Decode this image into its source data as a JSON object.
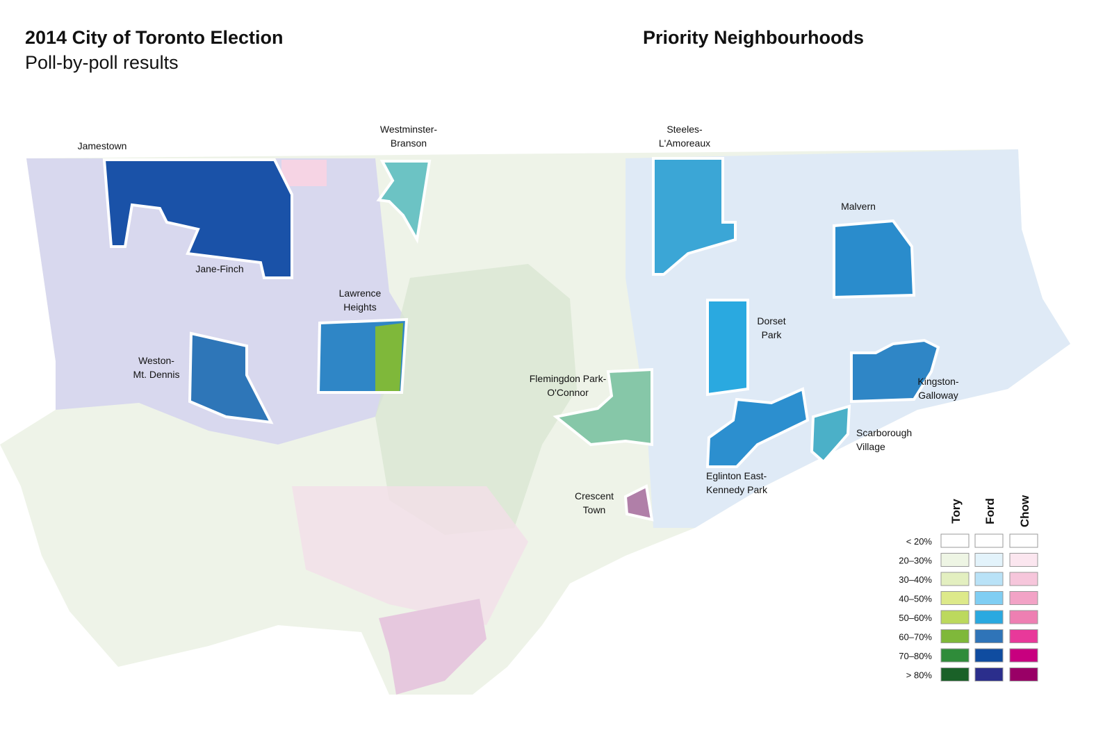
{
  "header": {
    "title": "2014 City of Toronto Election",
    "subtitle": "Poll-by-poll results",
    "section_title": "Priority Neighbourhoods"
  },
  "neighbourhoods": [
    {
      "label": [
        "Jamestown"
      ]
    },
    {
      "label": [
        "Westminster-",
        "Branson"
      ]
    },
    {
      "label": [
        "Steeles-",
        "L'Amoreaux"
      ]
    },
    {
      "label": [
        "Malvern"
      ]
    },
    {
      "label": [
        "Jane-Finch"
      ]
    },
    {
      "label": [
        "Lawrence",
        "Heights"
      ]
    },
    {
      "label": [
        "Dorset",
        "Park"
      ]
    },
    {
      "label": [
        "Weston-",
        "Mt. Dennis"
      ]
    },
    {
      "label": [
        "Flemingdon Park-",
        "O'Connor"
      ]
    },
    {
      "label": [
        "Kingston-",
        "Galloway"
      ]
    },
    {
      "label": [
        "Scarborough",
        "Village"
      ]
    },
    {
      "label": [
        "Eglinton East-",
        "Kennedy Park"
      ]
    },
    {
      "label": [
        "Crescent",
        "Town"
      ]
    }
  ],
  "legend": {
    "rows": [
      "< 20%",
      "20–30%",
      "30–40%",
      "40–50%",
      "50–60%",
      "60–70%",
      "70–80%",
      "> 80%"
    ],
    "columns": [
      {
        "name": "Tory",
        "colors": [
          "#ffffff",
          "#eef5e4",
          "#e3efc0",
          "#dde98a",
          "#bcd95d",
          "#7fb83a",
          "#2f8c3a",
          "#1a6128"
        ]
      },
      {
        "name": "Ford",
        "colors": [
          "#ffffff",
          "#e3f3fb",
          "#b9e2f7",
          "#80cef3",
          "#2aa9e0",
          "#2f74b8",
          "#0f4ca0",
          "#2b2e8c"
        ]
      },
      {
        "name": "Chow",
        "colors": [
          "#ffffff",
          "#fbe6ef",
          "#f6c6db",
          "#f2a3c6",
          "#ee7fb2",
          "#e8399a",
          "#c8007f",
          "#990066"
        ]
      }
    ]
  }
}
